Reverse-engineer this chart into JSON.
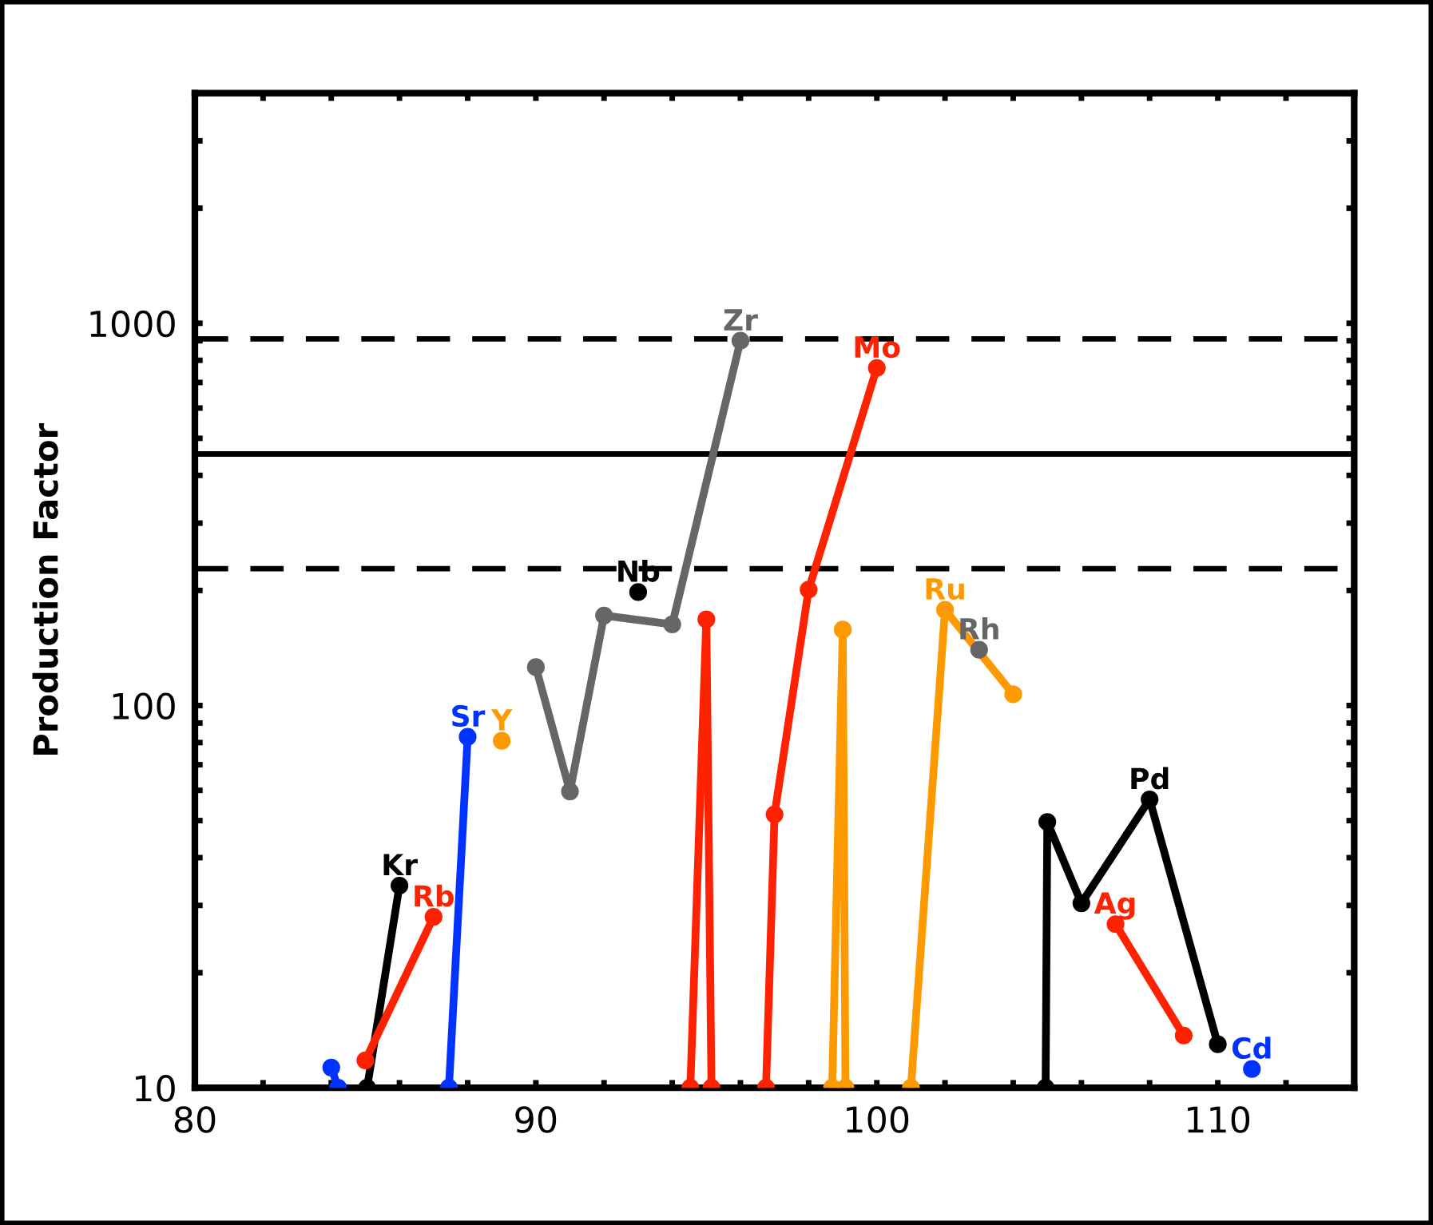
{
  "chart_data": {
    "type": "line",
    "ylabel": "Production Factor",
    "log": "y",
    "grid": false,
    "legend": false,
    "marker": "circle",
    "line_style": "solid",
    "xlim": [
      80,
      114
    ],
    "ylim": [
      10,
      4000
    ],
    "xticks": [
      80,
      {
        "value": 82,
        "label": null
      },
      {
        "value": 84,
        "label": null
      },
      {
        "value": 86,
        "label": null
      },
      {
        "value": 88,
        "label": null
      },
      90,
      {
        "value": 92,
        "label": null
      },
      {
        "value": 94,
        "label": null
      },
      {
        "value": 96,
        "label": null
      },
      {
        "value": 98,
        "label": null
      },
      100,
      {
        "value": 102,
        "label": null
      },
      {
        "value": 104,
        "label": null
      },
      {
        "value": 106,
        "label": null
      },
      {
        "value": 108,
        "label": null
      },
      110,
      {
        "value": 112,
        "label": null
      }
    ],
    "yticks": [
      10,
      {
        "value": 20,
        "label": null
      },
      {
        "value": 30,
        "label": null
      },
      {
        "value": 40,
        "label": null
      },
      {
        "value": 50,
        "label": null
      },
      {
        "value": 60,
        "label": null
      },
      {
        "value": 70,
        "label": null
      },
      {
        "value": 80,
        "label": null
      },
      {
        "value": 90,
        "label": null
      },
      100,
      {
        "value": 200,
        "label": null
      },
      {
        "value": 300,
        "label": null
      },
      {
        "value": 400,
        "label": null
      },
      {
        "value": 500,
        "label": null
      },
      {
        "value": 600,
        "label": null
      },
      {
        "value": 700,
        "label": null
      },
      {
        "value": 800,
        "label": null
      },
      {
        "value": 900,
        "label": null
      },
      1000,
      {
        "value": 2000,
        "label": null
      },
      {
        "value": 3000,
        "label": null
      },
      {
        "value": 4000,
        "label": null
      }
    ],
    "ref_lines": [
      {
        "axis": "y",
        "value": 455,
        "color": "#000000",
        "line_style": "solid"
      },
      {
        "axis": "y",
        "value": 910,
        "color": "#000000",
        "line_style": "dashed"
      },
      {
        "axis": "y",
        "value": 228,
        "color": "#000000",
        "line_style": "dashed"
      }
    ],
    "series": [
      {
        "name": "Kr",
        "color": "#000000",
        "x": [
          85.05,
          86
        ],
        "values": [
          10,
          33.8
        ]
      },
      {
        "name": "Rb",
        "color": "#ff2200",
        "x": [
          85,
          87
        ],
        "values": [
          11.8,
          28
        ]
      },
      {
        "name": "Sr",
        "color": "#0033ff",
        "x": [
          84,
          84.2,
          86,
          87.45,
          88
        ],
        "values": [
          11.3,
          10,
          null,
          10,
          82.8
        ]
      },
      {
        "name": "Y",
        "color": "#ff9900",
        "x": [
          89
        ],
        "values": [
          80.9
        ]
      },
      {
        "name": "Zr",
        "color": "#666666",
        "x": [
          90,
          91,
          92,
          94,
          96
        ],
        "values": [
          126,
          59.6,
          172,
          163,
          900
        ]
      },
      {
        "name": "Nb",
        "color": "#000000",
        "x": [
          93
        ],
        "values": [
          198
        ]
      },
      {
        "name": "Mo",
        "color": "#ff2200",
        "x": [
          94.53,
          95,
          95.15,
          96,
          96.75,
          97,
          98,
          100
        ],
        "values": [
          10,
          168,
          10,
          null,
          10,
          51.9,
          201,
          764
        ]
      },
      {
        "name": "Ru",
        "color": "#ff9900",
        "x": [
          98.69,
          99,
          99.08,
          100,
          101,
          102,
          104
        ],
        "values": [
          10,
          158,
          10,
          null,
          10,
          178,
          107
        ]
      },
      {
        "name": "Rh",
        "color": "#666666",
        "x": [
          103
        ],
        "values": [
          140
        ]
      },
      {
        "name": "Pd",
        "color": "#000000",
        "x": [
          104.95,
          105,
          106,
          108,
          110
        ],
        "values": [
          10,
          49.6,
          30.4,
          56.8,
          13.0
        ]
      },
      {
        "name": "Ag",
        "color": "#ff2200",
        "x": [
          107,
          109
        ],
        "values": [
          26.8,
          13.7
        ]
      },
      {
        "name": "Cd",
        "color": "#0033ff",
        "x": [
          111
        ],
        "values": [
          11.2
        ]
      }
    ]
  }
}
